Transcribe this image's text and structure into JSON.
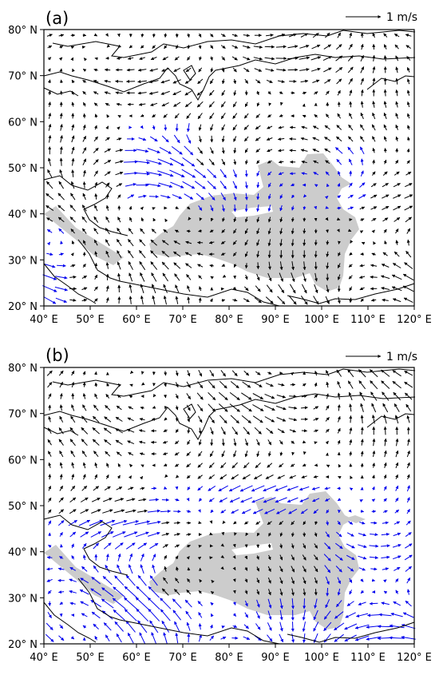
{
  "figure": {
    "colors": {
      "black_arrow": "#000000",
      "blue_arrow": "#0000ee",
      "plateau_fill": "#cccccc",
      "coastline": "#000000"
    },
    "panels": [
      {
        "id": "a",
        "label": "(a)",
        "legend": {
          "text": "1 m/s",
          "magnitude": 1
        },
        "x_ticks": [
          "40° E",
          "50° E",
          "60° E",
          "70° E",
          "80° E",
          "90° E",
          "100° E",
          "110° E",
          "120° E"
        ],
        "y_ticks": [
          "20° N",
          "30° N",
          "40° N",
          "50° N",
          "60° N",
          "70° N",
          "80° N"
        ],
        "lon_range": [
          40,
          120
        ],
        "lat_range": [
          20,
          80
        ],
        "highlight_regions": [
          {
            "lon": [
              58,
              72
            ],
            "lat": [
              42,
              60
            ]
          },
          {
            "lon": [
              73,
              108
            ],
            "lat": [
              41,
              50
            ]
          },
          {
            "lon": [
              102,
              111
            ],
            "lat": [
              43,
              54
            ]
          },
          {
            "lon": [
              40,
              45
            ],
            "lat": [
              20,
              37
            ]
          }
        ]
      },
      {
        "id": "b",
        "label": "(b)",
        "legend": {
          "text": "1 m/s",
          "magnitude": 1
        },
        "x_ticks": [
          "40° E",
          "50° E",
          "60° E",
          "70° E",
          "80° E",
          "90° E",
          "100° E",
          "110° E",
          "120° E"
        ],
        "y_ticks": [
          "20° N",
          "30° N",
          "40° N",
          "50° N",
          "60° N",
          "70° N",
          "80° N"
        ],
        "lon_range": [
          40,
          120
        ],
        "lat_range": [
          20,
          80
        ],
        "highlight_regions": [
          {
            "lon": [
              40,
              65
            ],
            "lat": [
              20,
              47
            ]
          },
          {
            "lon": [
              63,
              120
            ],
            "lat": [
              47,
              55
            ]
          },
          {
            "lon": [
              100,
              120
            ],
            "lat": [
              20,
              55
            ]
          },
          {
            "lon": [
              65,
              100
            ],
            "lat": [
              20,
              30
            ]
          }
        ]
      }
    ]
  }
}
